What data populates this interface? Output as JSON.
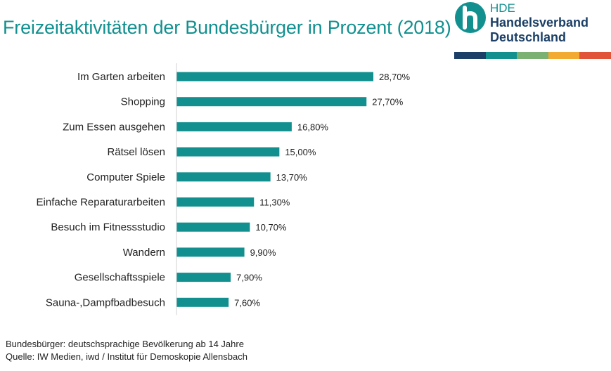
{
  "header": {
    "title": "Freizeitaktivitäten der Bundesbürger in Prozent (2018)"
  },
  "logo": {
    "line1": "HDE",
    "line2": "Handelsverband",
    "line3": "Deutschland",
    "icon": "hde-logo-icon",
    "colors": [
      "#12908f",
      "#1b3f66"
    ],
    "stripe_colors": [
      "#1b3f66",
      "#12908f",
      "#7bb274",
      "#f2aa33",
      "#e2543a"
    ]
  },
  "chart_data": {
    "type": "bar",
    "orientation": "horizontal",
    "title": "Freizeitaktivitäten der Bundesbürger in Prozent (2018)",
    "categories": [
      "Im Garten arbeiten",
      "Shopping",
      "Zum Essen ausgehen",
      "Rätsel lösen",
      "Computer Spiele",
      "Einfache Reparaturarbeiten",
      "Besuch im Fitnessstudio",
      "Wandern",
      "Gesellschaftsspiele",
      "Sauna-,Dampfbadbesuch"
    ],
    "values": [
      28.7,
      27.7,
      16.8,
      15.0,
      13.7,
      11.3,
      10.7,
      9.9,
      7.9,
      7.6
    ],
    "data_labels": [
      "28,70%",
      "27,70%",
      "16,80%",
      "15,00%",
      "13,70%",
      "11,30%",
      "10,70%",
      "9,90%",
      "7,90%",
      "7,60%"
    ],
    "bar_color": "#12908f",
    "xlim": [
      0,
      30
    ],
    "grid": false,
    "legend": "none"
  },
  "footnote": {
    "line1": "Bundesbürger: deutschsprachige Bevölkerung ab 14 Jahre",
    "line2": "Quelle: IW Medien, iwd / Institut für Demoskopie Allensbach"
  }
}
